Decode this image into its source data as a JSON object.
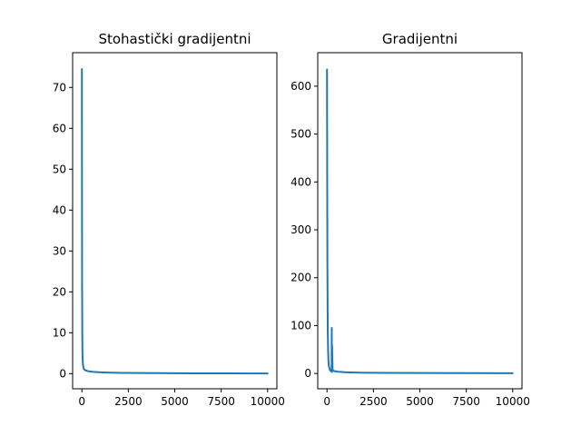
{
  "chart_data": [
    {
      "type": "line",
      "title": "Stohastički gradijentni",
      "xlabel": "",
      "ylabel": "",
      "xlim": [
        -500,
        10500
      ],
      "ylim": [
        -3.7,
        78.5
      ],
      "xticks": [
        0,
        2500,
        5000,
        7500,
        10000
      ],
      "yticks": [
        0,
        10,
        20,
        30,
        40,
        50,
        60,
        70
      ],
      "color": "#1f77b4",
      "grid": false,
      "series": [
        {
          "x": [
            0,
            5,
            10,
            20,
            30,
            50,
            75,
            100,
            150,
            200,
            300,
            400,
            600,
            800,
            1000,
            1500,
            2000,
            3000,
            4000,
            5000,
            6000,
            7000,
            8000,
            9000,
            10000
          ],
          "values": [
            74.5,
            45,
            22,
            10,
            5,
            2.5,
            1.6,
            1.2,
            0.95,
            0.8,
            0.65,
            0.55,
            0.45,
            0.38,
            0.32,
            0.25,
            0.2,
            0.15,
            0.12,
            0.1,
            0.09,
            0.08,
            0.07,
            0.06,
            0.05
          ]
        }
      ]
    },
    {
      "type": "line",
      "title": "Gradijentni",
      "xlabel": "",
      "ylabel": "",
      "xlim": [
        -500,
        10500
      ],
      "ylim": [
        -32,
        670
      ],
      "xticks": [
        0,
        2500,
        5000,
        7500,
        10000
      ],
      "yticks": [
        0,
        100,
        200,
        300,
        400,
        500,
        600
      ],
      "color": "#1f77b4",
      "grid": false,
      "series": [
        {
          "x": [
            0,
            10,
            20,
            40,
            60,
            80,
            100,
            150,
            200,
            250,
            255,
            260,
            270,
            300,
            400,
            500,
            600,
            800,
            1000,
            1500,
            2000,
            3000,
            5000,
            7500,
            10000
          ],
          "values": [
            635,
            420,
            230,
            90,
            45,
            25,
            15,
            8,
            5,
            4,
            95,
            3,
            60,
            6,
            5,
            4,
            3.5,
            3,
            2.5,
            2,
            1.5,
            1.2,
            1,
            0.8,
            0.6
          ]
        }
      ]
    }
  ]
}
